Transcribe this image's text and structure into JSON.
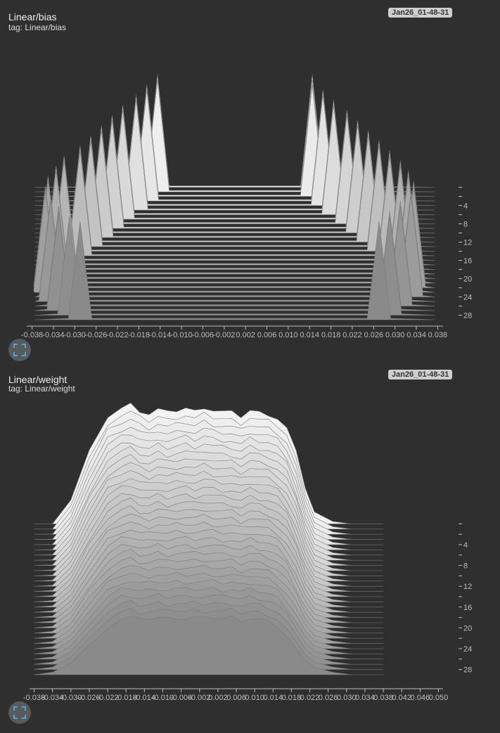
{
  "panels": [
    {
      "title": "Linear/bias",
      "tag": "tag: Linear/bias",
      "run": "Jan26_01-48-31",
      "expand_icon": "expand-icon",
      "chart_data": {
        "type": "histogram-offset",
        "x_ticks": [
          "-0.038",
          "-0.034",
          "-0.030",
          "-0.026",
          "-0.022",
          "-0.018",
          "-0.014",
          "-0.010",
          "-0.006",
          "-0.002",
          "0.002",
          "0.006",
          "0.010",
          "0.014",
          "0.018",
          "0.022",
          "0.026",
          "0.030",
          "0.034",
          "0.038"
        ],
        "xlim": [
          -0.039,
          0.039
        ],
        "step_ticks": [
          "4",
          "8",
          "12",
          "16",
          "20",
          "24",
          "28"
        ],
        "steps": [
          0,
          29
        ],
        "peaks_left": [
          -0.0145,
          -0.0165,
          -0.0185,
          -0.021,
          -0.023,
          -0.025,
          -0.027,
          -0.029,
          -0.032,
          -0.0335,
          -0.035,
          -0.0355,
          -0.0345,
          -0.033,
          -0.031,
          -0.029
        ],
        "peaks_right": [
          0.0145,
          0.0165,
          0.0185,
          0.021,
          0.023,
          0.025,
          0.027,
          0.029,
          0.031,
          0.0325,
          0.0335,
          0.033,
          0.031,
          0.029,
          0.027
        ],
        "colors": {
          "front": "#8a8a8a",
          "back": "#f2f2f2"
        }
      }
    },
    {
      "title": "Linear/weight",
      "tag": "tag: Linear/weight",
      "run": "Jan26_01-48-31",
      "expand_icon": "expand-icon",
      "chart_data": {
        "type": "histogram-offset",
        "x_ticks": [
          "-0.038",
          "-0.034",
          "-0.030",
          "-0.026",
          "-0.022",
          "-0.018",
          "-0.014",
          "-0.010",
          "-0.006",
          "-0.002",
          "0.002",
          "0.006",
          "0.010",
          "0.014",
          "0.018",
          "0.022",
          "0.026",
          "0.030",
          "0.034",
          "0.038",
          "0.042",
          "0.046",
          "0.050"
        ],
        "xlim": [
          -0.039,
          0.051
        ],
        "step_ticks": [
          "4",
          "8",
          "12",
          "16",
          "20",
          "24",
          "28"
        ],
        "steps": [
          0,
          29
        ],
        "profile_x": [
          -0.038,
          -0.034,
          -0.03,
          -0.026,
          -0.022,
          -0.019,
          -0.017,
          -0.015,
          -0.013,
          -0.011,
          -0.009,
          -0.007,
          -0.005,
          -0.003,
          -0.001,
          0.001,
          0.003,
          0.005,
          0.007,
          0.009,
          0.011,
          0.013,
          0.015,
          0.017,
          0.019,
          0.021,
          0.023,
          0.027,
          0.031,
          0.035,
          0.038
        ],
        "profile_back": [
          0,
          0,
          0.2,
          0.6,
          0.9,
          0.97,
          1.0,
          0.95,
          0.92,
          0.96,
          0.93,
          0.95,
          0.97,
          0.94,
          0.98,
          0.95,
          0.94,
          0.93,
          0.9,
          0.95,
          0.93,
          0.92,
          0.88,
          0.8,
          0.6,
          0.3,
          0.1,
          0.02,
          0,
          0,
          0
        ],
        "profile_front": [
          0,
          0.02,
          0.1,
          0.25,
          0.4,
          0.47,
          0.48,
          0.46,
          0.47,
          0.48,
          0.47,
          0.48,
          0.47,
          0.48,
          0.47,
          0.48,
          0.47,
          0.48,
          0.46,
          0.47,
          0.46,
          0.44,
          0.4,
          0.32,
          0.22,
          0.12,
          0.06,
          0.02,
          0,
          0,
          0
        ],
        "colors": {
          "front": "#8a8a8a",
          "back": "#f2f2f2"
        }
      }
    }
  ]
}
